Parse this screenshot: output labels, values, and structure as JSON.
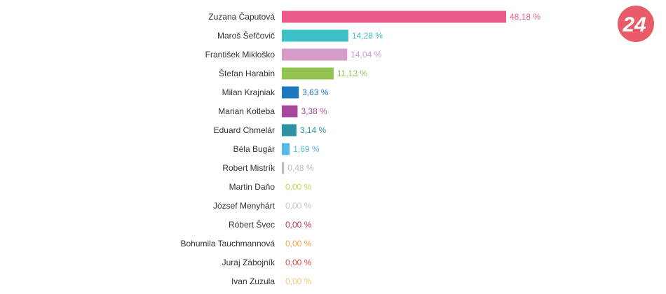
{
  "chart_data": {
    "type": "bar",
    "orientation": "horizontal",
    "categories": [
      "Zuzana Čaputová",
      "Maroš Šefčovič",
      "František Mikloško",
      "Štefan Harabin",
      "Milan Krajniak",
      "Marian Kotleba",
      "Eduard Chmelár",
      "Béla Bugár",
      "Robert Mistrík",
      "Martin Daňo",
      "József Menyhárt",
      "Róbert Švec",
      "Bohumila Tauchmannová",
      "Juraj Zábojník",
      "Ivan Zuzula"
    ],
    "values": [
      48.18,
      14.28,
      14.04,
      11.13,
      3.63,
      3.38,
      3.14,
      1.69,
      0.48,
      0.0,
      0.0,
      0.0,
      0.0,
      0.0,
      0.0
    ],
    "value_labels": [
      "48,18 %",
      "14,28 %",
      "14,04 %",
      "11,13 %",
      "3,63 %",
      "3,38 %",
      "3,14 %",
      "1,69 %",
      "0,48 %",
      "0,00 %",
      "0,00 %",
      "0,00 %",
      "0,00 %",
      "0,00 %",
      "0,00 %"
    ],
    "colors": [
      "#ea5b89",
      "#3cc1c8",
      "#d49ac8",
      "#93c452",
      "#1c77be",
      "#a8489b",
      "#2a93a3",
      "#56b9e6",
      "#bdbdbd",
      "#c4d84d",
      "#c6c6c6",
      "#c0334e",
      "#f2a34a",
      "#d94b3e",
      "#f4c673"
    ],
    "xlim": [
      0,
      50
    ],
    "grid": false,
    "legend": "none"
  },
  "logo": {
    "text": "24",
    "color": "#ea5b6a"
  }
}
